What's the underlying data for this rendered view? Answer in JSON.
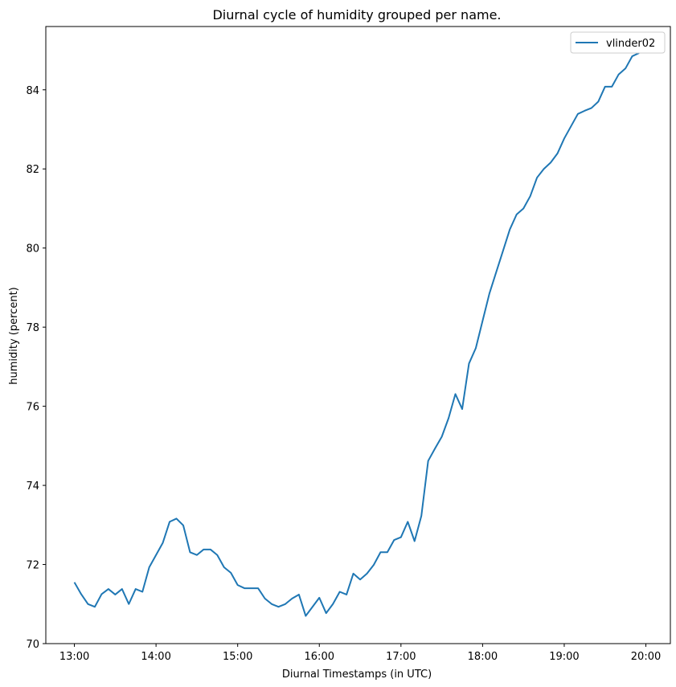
{
  "chart_data": {
    "type": "line",
    "title": "Diurnal cycle of humidity grouped per name.",
    "xlabel": "Diurnal Timestamps (in UTC)",
    "ylabel": "humidity (percent)",
    "xlim": [
      12.65,
      20.3
    ],
    "ylim": [
      70,
      85.6
    ],
    "x_ticks": [
      {
        "value": 13,
        "label": "13:00"
      },
      {
        "value": 14,
        "label": "14:00"
      },
      {
        "value": 15,
        "label": "15:00"
      },
      {
        "value": 16,
        "label": "16:00"
      },
      {
        "value": 17,
        "label": "17:00"
      },
      {
        "value": 18,
        "label": "18:00"
      },
      {
        "value": 19,
        "label": "19:00"
      },
      {
        "value": 20,
        "label": "20:00"
      }
    ],
    "y_ticks": [
      {
        "value": 70,
        "label": "70"
      },
      {
        "value": 72,
        "label": "72"
      },
      {
        "value": 74,
        "label": "74"
      },
      {
        "value": 76,
        "label": "76"
      },
      {
        "value": 78,
        "label": "78"
      },
      {
        "value": 80,
        "label": "80"
      },
      {
        "value": 82,
        "label": "82"
      },
      {
        "value": 84,
        "label": "84"
      }
    ],
    "grid": false,
    "legend_position": "top-right",
    "series": [
      {
        "name": "vlinder02",
        "color": "#1f77b4",
        "x": [
          "13:00",
          "13:05",
          "13:10",
          "13:15",
          "13:20",
          "13:25",
          "13:30",
          "13:35",
          "13:40",
          "13:45",
          "13:50",
          "13:55",
          "14:00",
          "14:05",
          "14:10",
          "14:15",
          "14:20",
          "14:25",
          "14:30",
          "14:35",
          "14:40",
          "14:45",
          "14:50",
          "14:55",
          "15:00",
          "15:05",
          "15:10",
          "15:15",
          "15:20",
          "15:25",
          "15:30",
          "15:35",
          "15:40",
          "15:45",
          "15:50",
          "15:55",
          "16:00",
          "16:05",
          "16:10",
          "16:15",
          "16:20",
          "16:25",
          "16:30",
          "16:35",
          "16:40",
          "16:45",
          "16:50",
          "16:55",
          "17:00",
          "17:05",
          "17:10",
          "17:15",
          "17:20",
          "17:25",
          "17:30",
          "17:35",
          "17:40",
          "17:45",
          "17:50",
          "17:55",
          "18:00",
          "18:05",
          "18:10",
          "18:15",
          "18:20",
          "18:25",
          "18:30",
          "18:35",
          "18:40",
          "18:45",
          "18:50",
          "18:55",
          "19:00",
          "19:05",
          "19:10",
          "19:15",
          "19:20",
          "19:25",
          "19:30",
          "19:35",
          "19:40",
          "19:45",
          "19:50",
          "19:55"
        ],
        "values": [
          71.55,
          71.25,
          71.0,
          70.93,
          71.25,
          71.38,
          71.24,
          71.38,
          71.0,
          71.38,
          71.31,
          71.93,
          72.24,
          72.55,
          73.08,
          73.16,
          72.99,
          72.31,
          72.24,
          72.38,
          72.38,
          72.24,
          71.93,
          71.79,
          71.48,
          71.4,
          71.4,
          71.4,
          71.14,
          71.0,
          70.93,
          71.0,
          71.14,
          71.24,
          70.7,
          70.93,
          71.16,
          70.77,
          71.0,
          71.31,
          71.24,
          71.77,
          71.62,
          71.77,
          71.99,
          72.31,
          72.31,
          72.62,
          72.69,
          73.08,
          72.59,
          73.23,
          74.62,
          74.93,
          75.23,
          75.7,
          76.31,
          75.93,
          77.08,
          77.47,
          78.16,
          78.85,
          79.39,
          79.93,
          80.47,
          80.85,
          81.0,
          81.31,
          81.78,
          82.0,
          82.16,
          82.39,
          82.77,
          83.08,
          83.39,
          83.47,
          83.54,
          83.7,
          84.08,
          84.08,
          84.39,
          84.54,
          84.85,
          84.93
        ]
      }
    ]
  }
}
